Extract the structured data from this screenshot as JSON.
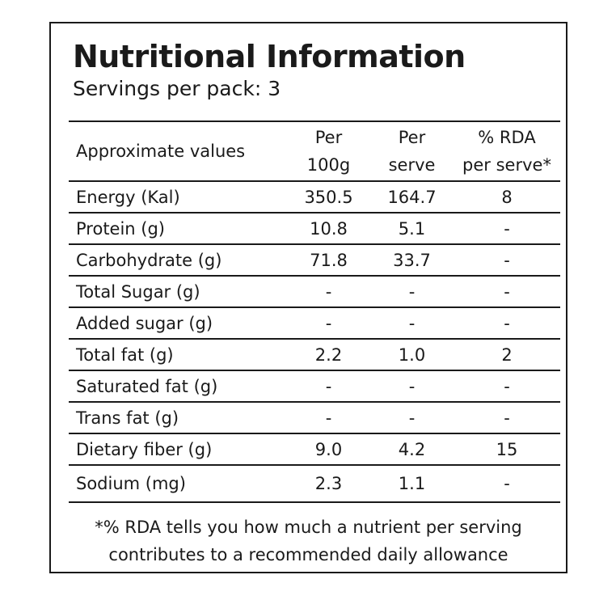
{
  "title": "Nutritional Information",
  "servings": {
    "label": "Servings per pack:",
    "value": "3"
  },
  "table": {
    "headers": {
      "name": "Approximate values",
      "per_100g": [
        "Per",
        "100g"
      ],
      "per_serve": [
        "Per",
        "serve"
      ],
      "rda": [
        "% RDA",
        "per serve*"
      ]
    },
    "rows": [
      {
        "name": "Energy (Kal)",
        "per_100g": "350.5",
        "per_serve": "164.7",
        "rda": "8"
      },
      {
        "name": "Protein (g)",
        "per_100g": "10.8",
        "per_serve": "5.1",
        "rda": "-"
      },
      {
        "name": "Carbohydrate (g)",
        "per_100g": "71.8",
        "per_serve": "33.7",
        "rda": "-"
      },
      {
        "name": "Total Sugar (g)",
        "per_100g": "-",
        "per_serve": "-",
        "rda": "-"
      },
      {
        "name": "Added sugar (g)",
        "per_100g": "-",
        "per_serve": "-",
        "rda": "-"
      },
      {
        "name": "Total fat (g)",
        "per_100g": "2.2",
        "per_serve": "1.0",
        "rda": "2"
      },
      {
        "name": "Saturated fat (g)",
        "per_100g": "-",
        "per_serve": "-",
        "rda": "-"
      },
      {
        "name": "Trans fat (g)",
        "per_100g": "-",
        "per_serve": "-",
        "rda": "-"
      },
      {
        "name": "Dietary fiber (g)",
        "per_100g": "9.0",
        "per_serve": "4.2",
        "rda": "15"
      },
      {
        "name": "Sodium (mg)",
        "per_100g": "2.3",
        "per_serve": "1.1",
        "rda": "-"
      }
    ]
  },
  "footnote": {
    "line1": "*% RDA tells you how much a nutrient per serving",
    "line2": "contributes to a recommended daily allowance"
  }
}
